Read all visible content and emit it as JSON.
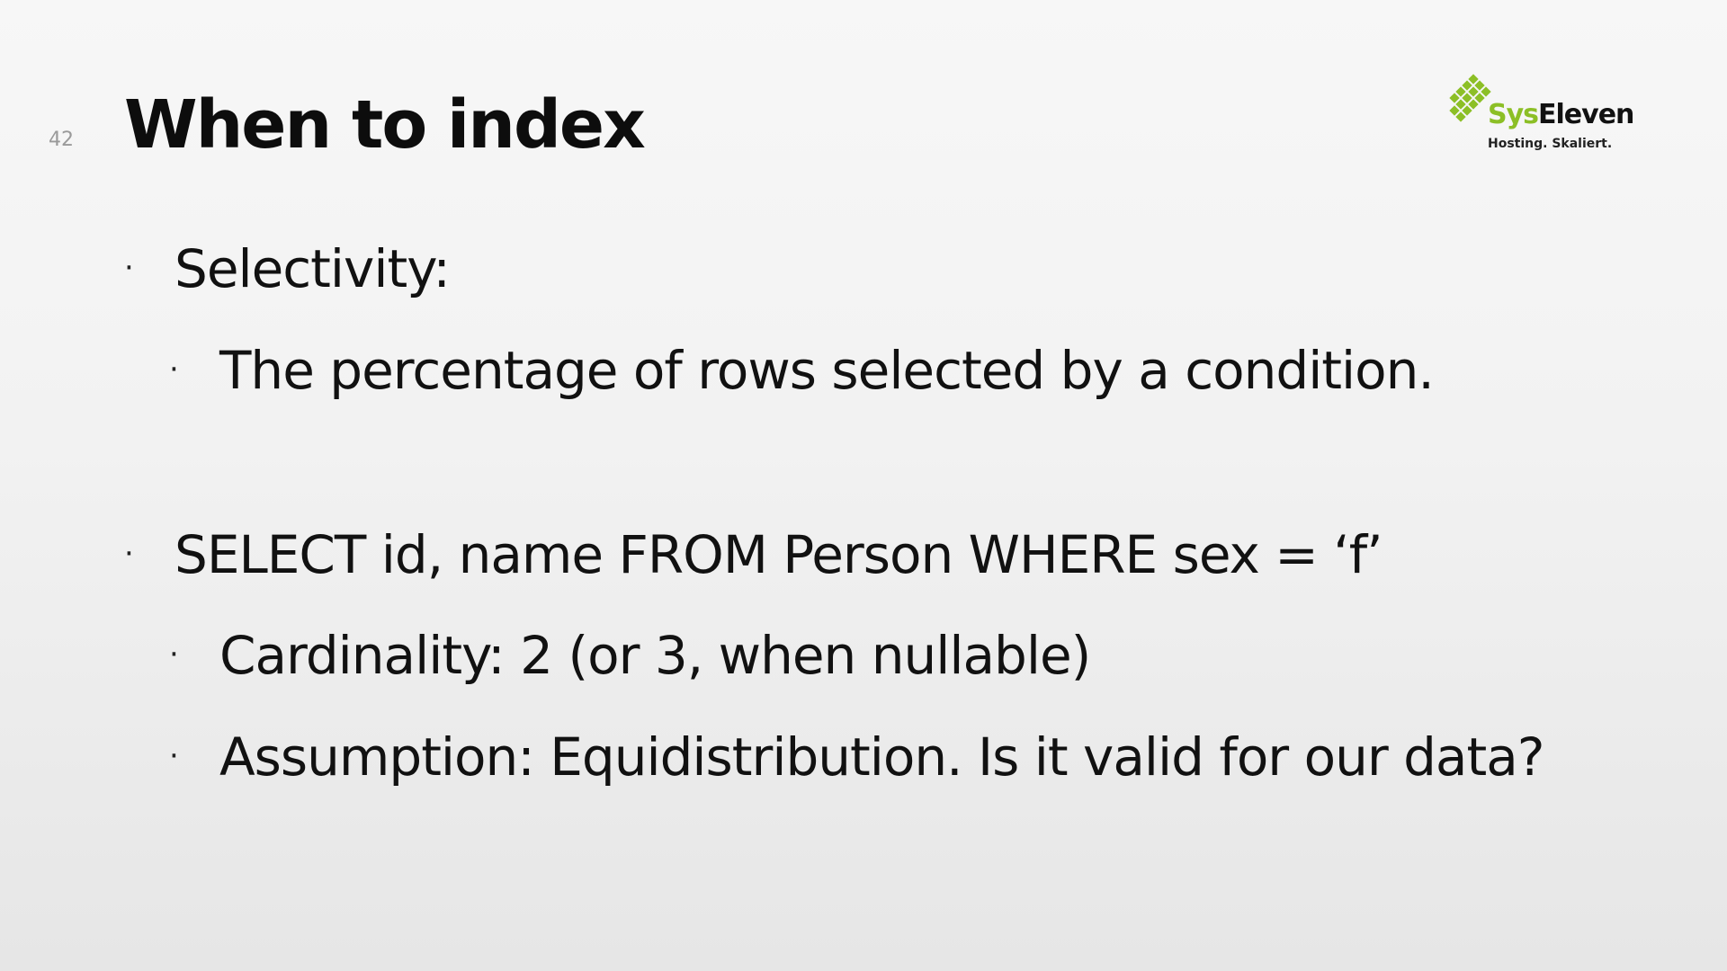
{
  "slide": {
    "page_number": "42",
    "title": "When to index",
    "logo": {
      "name_part1": "Sys",
      "name_part2": "Eleven",
      "tagline": "Hosting. Skaliert.",
      "accent_color": "#8cbf26"
    },
    "bullets": [
      {
        "level": 1,
        "text": "Selectivity:"
      },
      {
        "level": 2,
        "text": "The percentage of rows selected by a condition."
      },
      {
        "level": 1,
        "text": "SELECT id, name FROM Person WHERE sex = ‘f’"
      },
      {
        "level": 2,
        "text": "Cardinality: 2 (or 3, when nullable)"
      },
      {
        "level": 2,
        "text": "Assumption: Equidistribution. Is it valid for our data?"
      }
    ],
    "bullet_symbol": "·"
  }
}
